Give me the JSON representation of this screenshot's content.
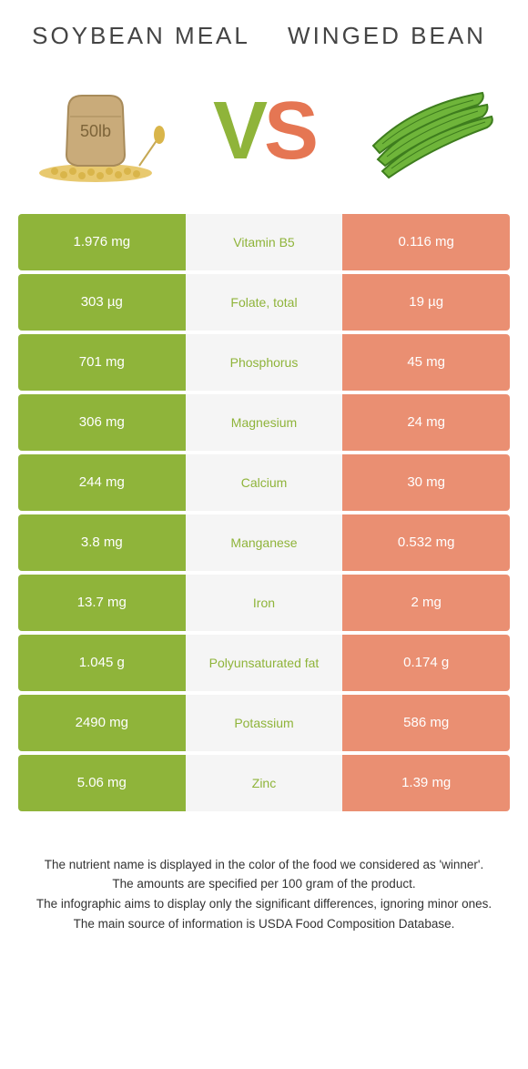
{
  "left_food": {
    "title": "Soybean meal"
  },
  "right_food": {
    "title": "Winged bean"
  },
  "vs": {
    "v": "V",
    "s": "S"
  },
  "colors": {
    "left_full": "#8fb43a",
    "left_light": "#a4c159",
    "right_full": "#e57653",
    "right_light": "#ea8f72",
    "mid_bg": "#f5f5f5",
    "mid_text_left": "#8fb43a",
    "mid_text_right": "#e57653"
  },
  "rows": [
    {
      "nutrient": "Vitamin B5",
      "left": "1.976 mg",
      "right": "0.116 mg",
      "winner": "left"
    },
    {
      "nutrient": "Folate, total",
      "left": "303 µg",
      "right": "19 µg",
      "winner": "left"
    },
    {
      "nutrient": "Phosphorus",
      "left": "701 mg",
      "right": "45 mg",
      "winner": "left"
    },
    {
      "nutrient": "Magnesium",
      "left": "306 mg",
      "right": "24 mg",
      "winner": "left"
    },
    {
      "nutrient": "Calcium",
      "left": "244 mg",
      "right": "30 mg",
      "winner": "left"
    },
    {
      "nutrient": "Manganese",
      "left": "3.8 mg",
      "right": "0.532 mg",
      "winner": "left"
    },
    {
      "nutrient": "Iron",
      "left": "13.7 mg",
      "right": "2 mg",
      "winner": "left"
    },
    {
      "nutrient": "Polyunsaturated fat",
      "left": "1.045 g",
      "right": "0.174 g",
      "winner": "left"
    },
    {
      "nutrient": "Potassium",
      "left": "2490 mg",
      "right": "586 mg",
      "winner": "left"
    },
    {
      "nutrient": "Zinc",
      "left": "5.06 mg",
      "right": "1.39 mg",
      "winner": "left"
    }
  ],
  "footnotes": [
    "The nutrient name is displayed in the color of the food we considered as 'winner'.",
    "The amounts are specified per 100 gram of the product.",
    "The infographic aims to display only the significant differences, ignoring minor ones.",
    "The main source of information is USDA Food Composition Database."
  ]
}
